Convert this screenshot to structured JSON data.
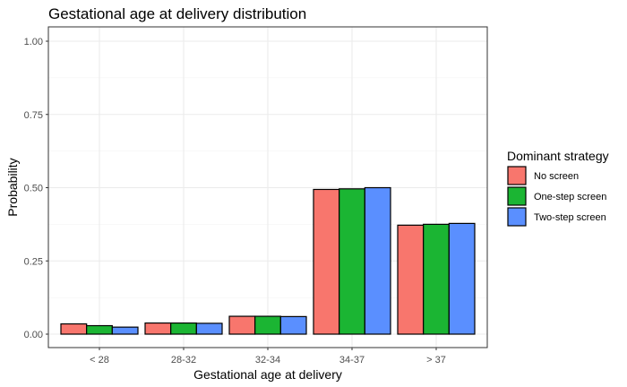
{
  "chart_data": {
    "type": "bar",
    "title": "Gestational age at delivery distribution",
    "xlabel": "Gestational age at delivery",
    "ylabel": "Probability",
    "categories": [
      "< 28",
      "28-32",
      "32-34",
      "34-37",
      "> 37"
    ],
    "ylim": [
      0,
      1
    ],
    "yticks": [
      0,
      0.25,
      0.5,
      0.75,
      1
    ],
    "ytick_labels": [
      "0.00",
      "0.25",
      "0.50",
      "0.75",
      "1.00"
    ],
    "grid": true,
    "legend": {
      "title": "Dominant strategy",
      "position": "right"
    },
    "series": [
      {
        "name": "No screen",
        "color": "#F8766D",
        "values": [
          0.035,
          0.038,
          0.061,
          0.494,
          0.372
        ]
      },
      {
        "name": "One-step screen",
        "color": "#1BB533",
        "values": [
          0.029,
          0.038,
          0.061,
          0.496,
          0.375
        ]
      },
      {
        "name": "Two-step screen",
        "color": "#5A8FFF",
        "values": [
          0.024,
          0.037,
          0.06,
          0.5,
          0.378
        ]
      }
    ]
  }
}
